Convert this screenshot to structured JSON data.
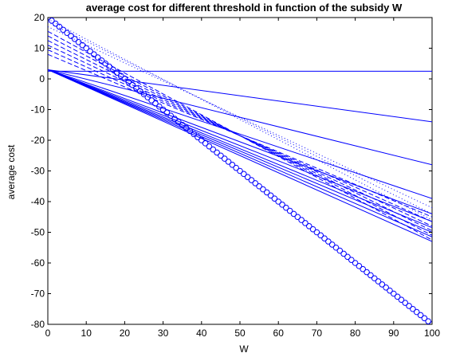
{
  "chart_data": {
    "type": "line",
    "title": "average cost for different threshold in function of the subsidy W",
    "xlabel": "W",
    "ylabel": "average cost",
    "xlim": [
      0,
      100
    ],
    "ylim": [
      -80,
      20
    ],
    "xticks": [
      "0",
      "10",
      "20",
      "30",
      "40",
      "50",
      "60",
      "70",
      "80",
      "90",
      "100"
    ],
    "yticks": [
      "20",
      "10",
      "0",
      "-10",
      "-20",
      "-30",
      "-40",
      "-50",
      "-60",
      "-70",
      "-80"
    ],
    "grid": false,
    "legend": "none",
    "color": "#0000ff",
    "series": [
      {
        "style": "solid",
        "x": [
          0,
          100
        ],
        "y": [
          2.5,
          2.5
        ]
      },
      {
        "style": "solid",
        "x": [
          0,
          100
        ],
        "y": [
          3.0,
          -14.0
        ]
      },
      {
        "style": "solid",
        "x": [
          0,
          100
        ],
        "y": [
          3.0,
          -28.0
        ]
      },
      {
        "style": "solid",
        "x": [
          0,
          100
        ],
        "y": [
          3.0,
          -39.0
        ]
      },
      {
        "style": "solid",
        "x": [
          0,
          100
        ],
        "y": [
          3.0,
          -44.0
        ]
      },
      {
        "style": "solid",
        "x": [
          0,
          100
        ],
        "y": [
          3.0,
          -46.5
        ]
      },
      {
        "style": "solid",
        "x": [
          0,
          100
        ],
        "y": [
          3.0,
          -48.5
        ]
      },
      {
        "style": "solid",
        "x": [
          0,
          100
        ],
        "y": [
          3.0,
          -50.0
        ]
      },
      {
        "style": "solid",
        "x": [
          0,
          100
        ],
        "y": [
          3.0,
          -51.5
        ]
      },
      {
        "style": "solid",
        "x": [
          0,
          100
        ],
        "y": [
          3.0,
          -53.0
        ]
      },
      {
        "style": "dashed",
        "x": [
          0,
          100
        ],
        "y": [
          8.0,
          -45.0
        ]
      },
      {
        "style": "dashed",
        "x": [
          0,
          100
        ],
        "y": [
          9.5,
          -46.5
        ]
      },
      {
        "style": "dashed",
        "x": [
          0,
          100
        ],
        "y": [
          11.0,
          -48.0
        ]
      },
      {
        "style": "dashed",
        "x": [
          0,
          100
        ],
        "y": [
          12.5,
          -49.5
        ]
      },
      {
        "style": "dashed",
        "x": [
          0,
          100
        ],
        "y": [
          14.0,
          -51.0
        ]
      },
      {
        "style": "dashed",
        "x": [
          0,
          100
        ],
        "y": [
          15.5,
          -52.5
        ]
      },
      {
        "style": "dotted",
        "x": [
          0,
          100
        ],
        "y": [
          17.0,
          -42.0
        ]
      },
      {
        "style": "dotted",
        "x": [
          0,
          100
        ],
        "y": [
          18.5,
          -44.0
        ]
      },
      {
        "style": "dotted",
        "x": [
          0,
          100
        ],
        "y": [
          19.5,
          -46.0
        ]
      },
      {
        "style": "circles",
        "x": [
          0,
          100
        ],
        "y": [
          20.0,
          -80.0
        ],
        "step": 1
      }
    ]
  }
}
